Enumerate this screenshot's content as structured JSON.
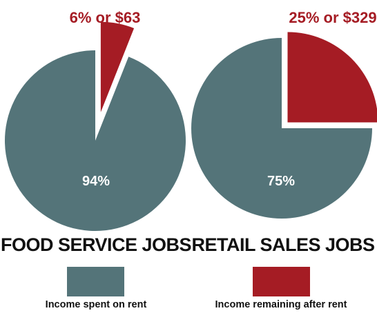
{
  "colors": {
    "rent": "#547479",
    "remaining": "#a51c24",
    "title": "#111111"
  },
  "chart_data": [
    {
      "type": "pie",
      "title": "FOOD SERVICE JOBS",
      "slices": [
        {
          "label": "Income remaining after rent",
          "value": 6,
          "display": "6% or $63",
          "color": "#a51c24",
          "exploded": true
        },
        {
          "label": "Income spent on rent",
          "value": 94,
          "display": "94%",
          "color": "#547479",
          "exploded": false
        }
      ]
    },
    {
      "type": "pie",
      "title": "RETAIL SALES JOBS",
      "slices": [
        {
          "label": "Income remaining after rent",
          "value": 25,
          "display": "25% or $329",
          "color": "#a51c24",
          "exploded": true
        },
        {
          "label": "Income spent on rent",
          "value": 75,
          "display": "75%",
          "color": "#547479",
          "exploded": false
        }
      ]
    }
  ],
  "legend": [
    {
      "label": "Income spent on rent",
      "color": "#547479"
    },
    {
      "label": "Income remaining after rent",
      "color": "#a51c24"
    }
  ]
}
